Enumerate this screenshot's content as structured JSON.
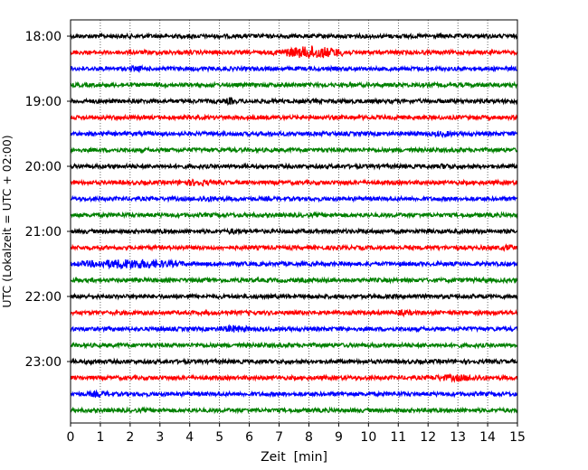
{
  "chart_data": {
    "type": "line",
    "xlabel": "Zeit  [min]",
    "ylabel": "UTC (Lokalzeit = UTC + 02:00)",
    "xlim": [
      0,
      15
    ],
    "x_ticks": [
      0,
      1,
      2,
      3,
      4,
      5,
      6,
      7,
      8,
      9,
      10,
      11,
      12,
      13,
      14,
      15
    ],
    "y_tick_labels": [
      "18:00",
      "19:00",
      "20:00",
      "21:00",
      "22:00",
      "23:00"
    ],
    "start_time": "18:00",
    "end_time": "23:45",
    "trace_duration_min": 15,
    "vertical_grid": true,
    "grid_style": "dotted",
    "colors": [
      "#000000",
      "#ff0000",
      "#0000ff",
      "#008000"
    ],
    "series": [
      {
        "time": "18:00",
        "color": "#000000",
        "bursts": []
      },
      {
        "time": "18:15",
        "color": "#ff0000",
        "bursts": [
          {
            "start": 6.8,
            "end": 9.4,
            "amp": 3.2
          }
        ]
      },
      {
        "time": "18:30",
        "color": "#0000ff",
        "bursts": [
          {
            "start": 2.0,
            "end": 2.4,
            "amp": 1.3
          }
        ]
      },
      {
        "time": "18:45",
        "color": "#008000",
        "bursts": []
      },
      {
        "time": "19:00",
        "color": "#000000",
        "bursts": [
          {
            "start": 5.2,
            "end": 5.5,
            "amp": 1.8
          }
        ]
      },
      {
        "time": "19:15",
        "color": "#ff0000",
        "bursts": []
      },
      {
        "time": "19:30",
        "color": "#0000ff",
        "bursts": [
          {
            "start": 12.2,
            "end": 12.8,
            "amp": 1.2
          }
        ]
      },
      {
        "time": "19:45",
        "color": "#008000",
        "bursts": []
      },
      {
        "time": "20:00",
        "color": "#000000",
        "bursts": [
          {
            "start": 12.4,
            "end": 12.8,
            "amp": 1.1
          }
        ]
      },
      {
        "time": "20:15",
        "color": "#ff0000",
        "bursts": [
          {
            "start": 3.6,
            "end": 4.7,
            "amp": 1.4
          }
        ]
      },
      {
        "time": "20:30",
        "color": "#0000ff",
        "bursts": [
          {
            "start": 4.3,
            "end": 5.0,
            "amp": 1.3
          }
        ]
      },
      {
        "time": "20:45",
        "color": "#008000",
        "bursts": []
      },
      {
        "time": "21:00",
        "color": "#000000",
        "bursts": [
          {
            "start": 5.3,
            "end": 5.7,
            "amp": 1.2
          }
        ]
      },
      {
        "time": "21:15",
        "color": "#ff0000",
        "bursts": [
          {
            "start": 14.5,
            "end": 14.9,
            "amp": 1.5
          }
        ]
      },
      {
        "time": "21:30",
        "color": "#0000ff",
        "bursts": [
          {
            "start": 0.2,
            "end": 3.8,
            "amp": 2.4
          }
        ]
      },
      {
        "time": "21:45",
        "color": "#008000",
        "bursts": []
      },
      {
        "time": "22:00",
        "color": "#000000",
        "bursts": []
      },
      {
        "time": "22:15",
        "color": "#ff0000",
        "bursts": [
          {
            "start": 10.9,
            "end": 11.5,
            "amp": 1.2
          }
        ]
      },
      {
        "time": "22:30",
        "color": "#0000ff",
        "bursts": [
          {
            "start": 5.0,
            "end": 6.0,
            "amp": 1.7
          }
        ]
      },
      {
        "time": "22:45",
        "color": "#008000",
        "bursts": []
      },
      {
        "time": "23:00",
        "color": "#000000",
        "bursts": [
          {
            "start": 0.5,
            "end": 1.0,
            "amp": 1.2
          }
        ]
      },
      {
        "time": "23:15",
        "color": "#ff0000",
        "bursts": [
          {
            "start": 12.0,
            "end": 14.0,
            "amp": 1.5
          }
        ]
      },
      {
        "time": "23:30",
        "color": "#0000ff",
        "bursts": [
          {
            "start": 0.6,
            "end": 1.4,
            "amp": 1.3
          }
        ]
      },
      {
        "time": "23:45",
        "color": "#008000",
        "bursts": []
      }
    ]
  }
}
